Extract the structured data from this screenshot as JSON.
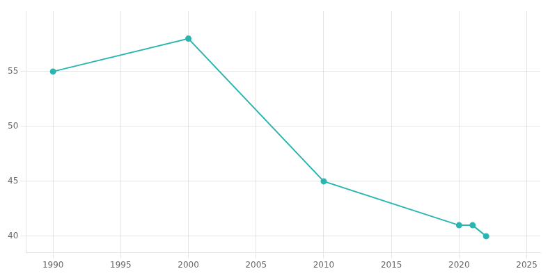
{
  "chart_data": {
    "type": "line",
    "x": [
      1990,
      2000,
      2010,
      2020,
      2021,
      2022
    ],
    "values": [
      55,
      58,
      45,
      41,
      41,
      40
    ],
    "color": "#2ab5b0",
    "marker": "circle",
    "xlim": [
      1988,
      2026
    ],
    "ylim": [
      38.5,
      60.5
    ],
    "xticks": [
      1990,
      1995,
      2000,
      2005,
      2010,
      2015,
      2020,
      2025
    ],
    "yticks": [
      40,
      45,
      50,
      55
    ],
    "grid": true
  }
}
